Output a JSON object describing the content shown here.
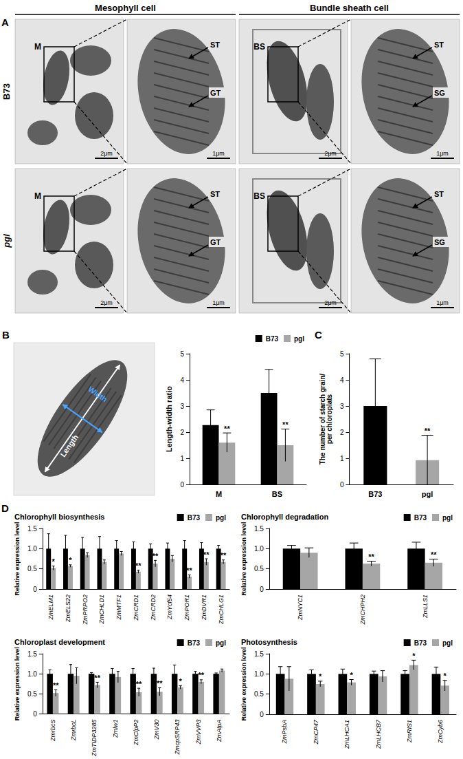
{
  "panel_labels": [
    "A",
    "B",
    "C",
    "D"
  ],
  "panel_a": {
    "headers": [
      "Mesophyll cell",
      "Bundle sheath cell"
    ],
    "rows": [
      {
        "label": "B73",
        "images": [
          {
            "tag": "M",
            "scale": "2μm"
          },
          {
            "arrows": [
              "ST",
              "GT"
            ],
            "scale": "1μm"
          },
          {
            "tag": "BS",
            "scale": "2μm"
          },
          {
            "arrows": [
              "ST",
              "SG"
            ],
            "scale": "1μm"
          }
        ]
      },
      {
        "label": "pgl",
        "images": [
          {
            "tag": "M",
            "scale": "2μm"
          },
          {
            "arrows": [
              "ST",
              "GT"
            ],
            "scale": "1μm"
          },
          {
            "tag": "BS",
            "scale": "2μm"
          },
          {
            "arrows": [
              "ST",
              "SG"
            ],
            "scale": "1μm"
          }
        ]
      }
    ]
  },
  "panel_b_image": {
    "length": "Length",
    "width": "Width"
  },
  "chart_data": [
    {
      "type": "bar",
      "categories": [
        "M",
        "BS"
      ],
      "series": [
        {
          "name": "B73",
          "color": "#000000",
          "values": [
            2.27,
            3.5
          ],
          "errors": [
            0.58,
            0.9
          ],
          "significance": [
            null,
            null
          ]
        },
        {
          "name": "pgl",
          "color": "#a6a6a6",
          "values": [
            1.6,
            1.5
          ],
          "errors": [
            0.37,
            0.62
          ],
          "significance": [
            "**",
            "**"
          ]
        }
      ],
      "y_label": "Length-width ratio",
      "ylim": [
        0,
        5
      ],
      "yticks": [
        0,
        1,
        2,
        3,
        4,
        5
      ],
      "legend": "upper right",
      "grid": false
    },
    {
      "type": "bar",
      "categories": [
        "B73",
        "pgl"
      ],
      "values": [
        3.0,
        0.93
      ],
      "colors": [
        "#000000",
        "#a6a6a6"
      ],
      "errors": [
        1.8,
        0.95
      ],
      "significance": [
        null,
        "**"
      ],
      "y_label": "The number of starch grain/\nper chloroplats",
      "ylim": [
        0,
        5
      ],
      "yticks": [
        0,
        1,
        2,
        3,
        4,
        5
      ],
      "grid": false
    },
    {
      "type": "bar",
      "title": "Chlorophyll biosynthesis",
      "categories": [
        "ZmELM1",
        "ZmELS22",
        "ZmPRPO2",
        "ZmCHLD1",
        "ZmMTF1",
        "ZmCRD1",
        "ZmCRD2",
        "ZmYcf54",
        "ZmPOR1",
        "ZmDVR1",
        "ZmCHLG1"
      ],
      "series": [
        {
          "name": "B73",
          "color": "#000000",
          "values": [
            1,
            1,
            1,
            1,
            1,
            1,
            1,
            1,
            1,
            1,
            1
          ],
          "errors": [
            0.37,
            0.33,
            0.28,
            0.3,
            0.2,
            0.17,
            0.12,
            0.14,
            0.2,
            0.15,
            0.08
          ],
          "significance": [
            null,
            null,
            null,
            null,
            null,
            null,
            null,
            null,
            null,
            null,
            null
          ]
        },
        {
          "name": "pgl",
          "color": "#a6a6a6",
          "values": [
            0.52,
            0.57,
            0.84,
            0.67,
            0.88,
            0.43,
            0.63,
            0.75,
            0.31,
            0.67,
            0.67
          ],
          "errors": [
            0.05,
            0.03,
            0.06,
            0.05,
            0.05,
            0.04,
            0.08,
            0.08,
            0.04,
            0.08,
            0.05
          ],
          "significance": [
            "*",
            "*",
            null,
            null,
            null,
            "**",
            "**",
            null,
            "**",
            "**",
            "**"
          ]
        }
      ],
      "y_label": "Relative expression level",
      "ylim": [
        0,
        1.5
      ],
      "yticks": [
        0,
        0.5,
        {
          "value": 1,
          "label": "1.0"
        },
        1.5
      ],
      "legend": "upper right",
      "grid": false
    },
    {
      "type": "bar",
      "title": "Chlorophyll degradation",
      "categories": [
        "ZmNYC1",
        "ZmCHPH2",
        "ZmLLS1"
      ],
      "series": [
        {
          "name": "B73",
          "color": "#000000",
          "values": [
            1,
            1,
            1
          ],
          "errors": [
            0.08,
            0.14,
            0.16
          ],
          "significance": [
            null,
            null,
            null
          ]
        },
        {
          "name": "pgl",
          "color": "#a6a6a6",
          "values": [
            0.9,
            0.63,
            0.65
          ],
          "errors": [
            0.12,
            0.06,
            0.09
          ],
          "significance": [
            null,
            "**",
            "**"
          ]
        }
      ],
      "y_label": "Relative expression level",
      "ylim": [
        0,
        1.5
      ],
      "yticks": [
        0,
        0.5,
        {
          "value": 1,
          "label": "1.0"
        },
        1.5
      ],
      "legend": "upper right",
      "grid": false
    },
    {
      "type": "bar",
      "title": "Chloroplast development",
      "categories": [
        "ZmrbcS",
        "ZmrbcL",
        "ZmTIDP3285",
        "Zmlw1",
        "ZmClpP2",
        "ZmV30",
        "ZmcpSRP43",
        "ZmVVP3",
        "ZmAtpA"
      ],
      "series": [
        {
          "name": "B73",
          "color": "#000000",
          "values": [
            1,
            1,
            1,
            1,
            1,
            1,
            1,
            1,
            1
          ],
          "errors": [
            0.1,
            0.23,
            0.03,
            0.13,
            0.13,
            0.14,
            0.22,
            0.06,
            0.02
          ],
          "significance": [
            null,
            null,
            null,
            null,
            null,
            null,
            null,
            null,
            null
          ]
        },
        {
          "name": "pgl",
          "color": "#a6a6a6",
          "values": [
            0.52,
            0.95,
            0.72,
            0.92,
            0.54,
            0.55,
            0.66,
            0.8,
            1.08
          ],
          "errors": [
            0.08,
            0.2,
            0.07,
            0.14,
            0.1,
            0.1,
            0.04,
            0.05,
            0.04
          ],
          "significance": [
            "**",
            null,
            "**",
            null,
            "**",
            "**",
            "*",
            "**",
            null
          ]
        }
      ],
      "y_label": "Relative expression level",
      "ylim": [
        0,
        1.5
      ],
      "yticks": [
        0,
        0.5,
        {
          "value": 1,
          "label": "1.0"
        },
        1.5
      ],
      "legend": "upper right",
      "grid": false
    },
    {
      "type": "bar",
      "title": "Photosynthesis",
      "categories": [
        "ZmPsbA",
        "ZmCP47",
        "ZmLHCA1",
        "ZmLHCB7",
        "ZmRIS1",
        "ZmCyb6"
      ],
      "series": [
        {
          "name": "B73",
          "color": "#000000",
          "values": [
            1,
            1,
            1,
            1,
            1,
            1
          ],
          "errors": [
            0.18,
            0.1,
            0.12,
            0.07,
            0.08,
            0.17
          ],
          "significance": [
            null,
            null,
            null,
            null,
            null,
            null
          ]
        },
        {
          "name": "pgl",
          "color": "#a6a6a6",
          "values": [
            0.88,
            0.75,
            0.79,
            0.94,
            1.22,
            0.71
          ],
          "errors": [
            0.3,
            0.07,
            0.07,
            0.14,
            0.12,
            0.13
          ],
          "significance": [
            null,
            "*",
            "*",
            null,
            "*",
            "*"
          ]
        }
      ],
      "y_label": "Relative expression level",
      "ylim": [
        0,
        1.5
      ],
      "yticks": [
        0,
        0.5,
        {
          "value": 1,
          "label": "1.0"
        },
        1.5
      ],
      "legend": "upper right",
      "grid": false
    }
  ]
}
